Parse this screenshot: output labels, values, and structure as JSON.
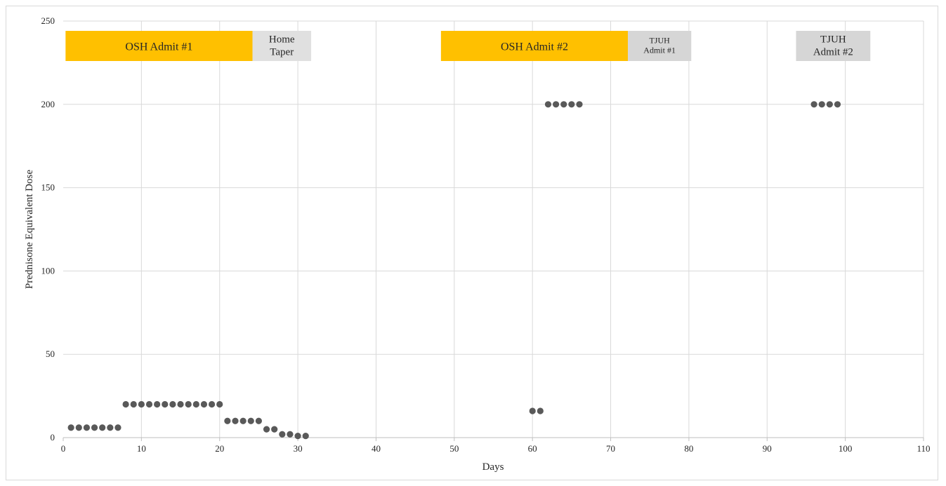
{
  "chart_data": {
    "type": "scatter",
    "title": "",
    "xlabel": "Days",
    "ylabel": "Prednisone Equivalent Dose",
    "xlim": [
      0,
      110
    ],
    "ylim": [
      0,
      250
    ],
    "x_ticks": [
      0,
      10,
      20,
      30,
      40,
      50,
      60,
      70,
      80,
      90,
      100,
      110
    ],
    "y_ticks": [
      0,
      50,
      100,
      150,
      200,
      250
    ],
    "grid": true,
    "marker_color": "#595959",
    "points": [
      [
        1,
        6
      ],
      [
        2,
        6
      ],
      [
        3,
        6
      ],
      [
        4,
        6
      ],
      [
        5,
        6
      ],
      [
        6,
        6
      ],
      [
        7,
        6
      ],
      [
        8,
        20
      ],
      [
        9,
        20
      ],
      [
        10,
        20
      ],
      [
        11,
        20
      ],
      [
        12,
        20
      ],
      [
        13,
        20
      ],
      [
        14,
        20
      ],
      [
        15,
        20
      ],
      [
        16,
        20
      ],
      [
        17,
        20
      ],
      [
        18,
        20
      ],
      [
        19,
        20
      ],
      [
        20,
        20
      ],
      [
        21,
        10
      ],
      [
        22,
        10
      ],
      [
        23,
        10
      ],
      [
        24,
        10
      ],
      [
        25,
        10
      ],
      [
        26,
        5
      ],
      [
        27,
        5
      ],
      [
        28,
        2
      ],
      [
        29,
        2
      ],
      [
        30,
        1
      ],
      [
        31,
        1
      ],
      [
        60,
        16
      ],
      [
        61,
        16
      ],
      [
        62,
        200
      ],
      [
        63,
        200
      ],
      [
        64,
        200
      ],
      [
        65,
        200
      ],
      [
        66,
        200
      ],
      [
        96,
        200
      ],
      [
        97,
        200
      ],
      [
        98,
        200
      ],
      [
        99,
        200
      ]
    ],
    "annotations": [
      {
        "label": "OSH Admit #1",
        "x_start": 0.3,
        "x_end": 24.2,
        "color": "#ffc000"
      },
      {
        "label": "Home Taper",
        "x_start": 24.2,
        "x_end": 31.7,
        "color": "#e0e0e0"
      },
      {
        "label": "OSH Admit #2",
        "x_start": 48.3,
        "x_end": 72.2,
        "color": "#ffc000"
      },
      {
        "label": "TJUH Admit #1",
        "x_start": 72.2,
        "x_end": 80.3,
        "color": "#d6d6d6"
      },
      {
        "label": "TJUH Admit #2",
        "x_start": 93.7,
        "x_end": 103.2,
        "color": "#d6d6d6"
      }
    ]
  }
}
